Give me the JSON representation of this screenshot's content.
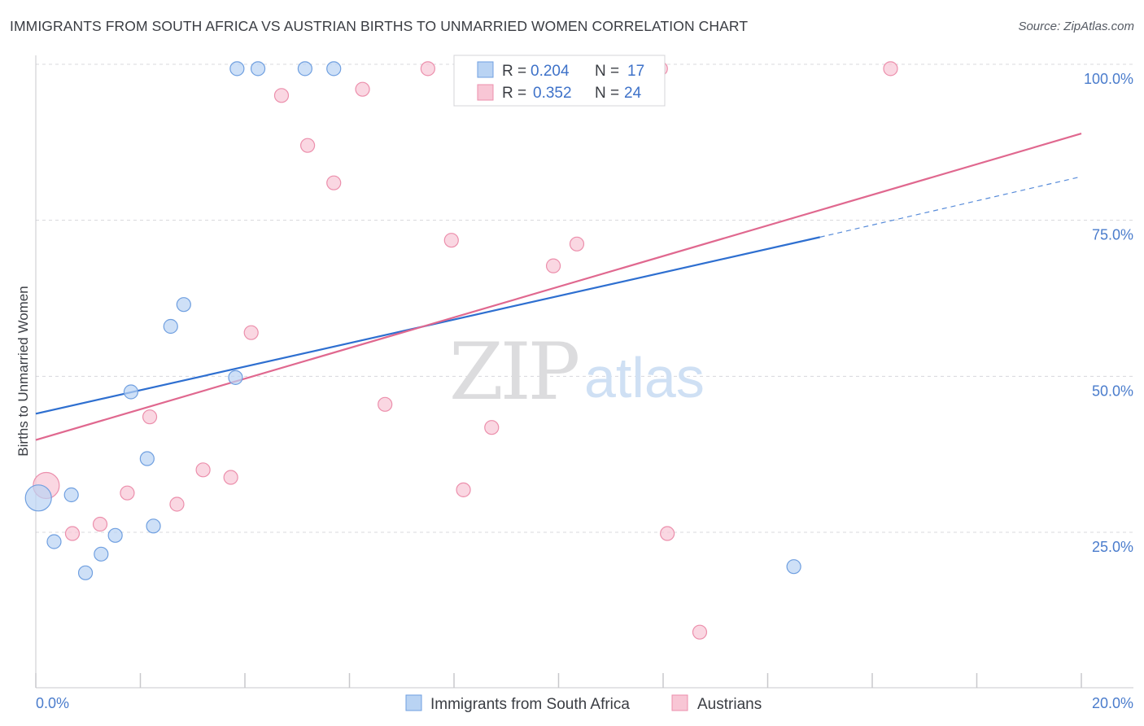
{
  "title": "IMMIGRANTS FROM SOUTH AFRICA VS AUSTRIAN BIRTHS TO UNMARRIED WOMEN CORRELATION CHART",
  "source": "Source: ZipAtlas.com",
  "watermark": {
    "zip": "ZIP",
    "atlas": "atlas"
  },
  "colors": {
    "blue_fill": "#b9d3f3",
    "blue_stroke": "#6f9fe0",
    "blue_line": "#2e6fd0",
    "pink_fill": "#f8c6d5",
    "pink_stroke": "#ec8fac",
    "pink_line": "#e0688f",
    "grid": "#d8d8dc",
    "axis_text": "#4a7ccc"
  },
  "legend": {
    "blue": {
      "r_label": "R =",
      "r_value": "0.204",
      "n_label": "N =",
      "n_value": "17"
    },
    "pink": {
      "r_label": "R =",
      "r_value": "0.352",
      "n_label": "N =",
      "n_value": "24"
    }
  },
  "chart_data": {
    "type": "scatter",
    "title": "IMMIGRANTS FROM SOUTH AFRICA VS AUSTRIAN BIRTHS TO UNMARRIED WOMEN CORRELATION CHART",
    "xlabel": "",
    "ylabel": "Births to Unmarried Women",
    "xlim": [
      0,
      20
    ],
    "ylim": [
      0,
      102
    ],
    "x_tick_labels": {
      "left": "0.0%",
      "right": "20.0%"
    },
    "y_ticks": [
      {
        "value": 25,
        "label": "25.0%"
      },
      {
        "value": 50,
        "label": "50.0%"
      },
      {
        "value": 75,
        "label": "75.0%"
      },
      {
        "value": 100,
        "label": "100.0%"
      }
    ],
    "series": [
      {
        "name": "Immigrants from South Africa",
        "color": "blue",
        "points": [
          {
            "x": 0.05,
            "y": 30.5,
            "big": true
          },
          {
            "x": 0.35,
            "y": 23.5
          },
          {
            "x": 0.68,
            "y": 31.0
          },
          {
            "x": 0.95,
            "y": 18.5
          },
          {
            "x": 1.25,
            "y": 21.5
          },
          {
            "x": 1.52,
            "y": 24.5
          },
          {
            "x": 1.82,
            "y": 47.5
          },
          {
            "x": 2.13,
            "y": 36.8
          },
          {
            "x": 2.25,
            "y": 26.0
          },
          {
            "x": 2.58,
            "y": 58.0
          },
          {
            "x": 2.83,
            "y": 61.5
          },
          {
            "x": 3.82,
            "y": 49.8
          },
          {
            "x": 3.85,
            "y": 99.3
          },
          {
            "x": 4.25,
            "y": 99.3
          },
          {
            "x": 5.15,
            "y": 99.3
          },
          {
            "x": 5.7,
            "y": 99.3
          },
          {
            "x": 14.5,
            "y": 19.5
          }
        ],
        "trend": {
          "x0": 0,
          "y0": 44.0,
          "x1": 15.0,
          "y1": 72.3,
          "dash_to_x": 20.0,
          "dash_to_y": 82.0
        }
      },
      {
        "name": "Austrians",
        "color": "pink",
        "points": [
          {
            "x": 0.2,
            "y": 32.5,
            "big": true
          },
          {
            "x": 0.7,
            "y": 24.8
          },
          {
            "x": 1.23,
            "y": 26.3
          },
          {
            "x": 1.75,
            "y": 31.3
          },
          {
            "x": 2.18,
            "y": 43.5
          },
          {
            "x": 2.7,
            "y": 29.5
          },
          {
            "x": 3.2,
            "y": 35.0
          },
          {
            "x": 3.73,
            "y": 33.8
          },
          {
            "x": 4.12,
            "y": 57.0
          },
          {
            "x": 4.7,
            "y": 95.0
          },
          {
            "x": 5.2,
            "y": 87.0
          },
          {
            "x": 5.7,
            "y": 81.0
          },
          {
            "x": 6.25,
            "y": 96.0
          },
          {
            "x": 6.68,
            "y": 45.5
          },
          {
            "x": 7.5,
            "y": 99.3
          },
          {
            "x": 7.95,
            "y": 71.8
          },
          {
            "x": 8.18,
            "y": 31.8
          },
          {
            "x": 8.72,
            "y": 41.8
          },
          {
            "x": 9.9,
            "y": 67.7
          },
          {
            "x": 10.35,
            "y": 71.2
          },
          {
            "x": 11.95,
            "y": 99.3
          },
          {
            "x": 12.08,
            "y": 24.8
          },
          {
            "x": 12.7,
            "y": 9.0
          },
          {
            "x": 16.35,
            "y": 99.3
          }
        ],
        "trend": {
          "x0": 0,
          "y0": 39.8,
          "x1": 20.0,
          "y1": 88.9
        }
      }
    ]
  }
}
